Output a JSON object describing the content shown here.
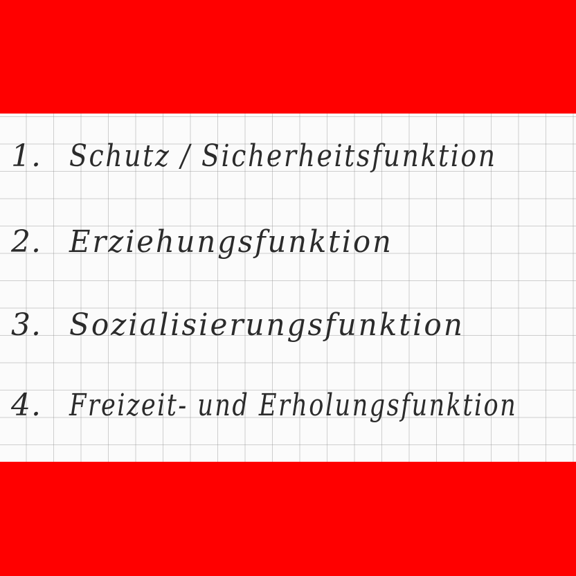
{
  "list": {
    "items": [
      {
        "number": "1.",
        "text": "Schutz / Sicherheitsfunktion"
      },
      {
        "number": "2.",
        "text": "Erziehungsfunktion"
      },
      {
        "number": "3.",
        "text": "Sozialisierungsfunktion"
      },
      {
        "number": "4.",
        "text": "Freizeit- und Erholungsfunktion"
      }
    ]
  },
  "colors": {
    "frame": "#ff0000",
    "paper": "#fbfbfb",
    "grid": "#969696",
    "ink": "#2b2b2b"
  }
}
